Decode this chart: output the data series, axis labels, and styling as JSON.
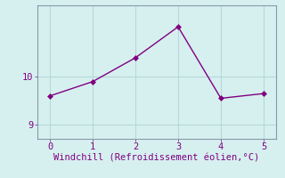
{
  "x": [
    0,
    1,
    2,
    3,
    4,
    5
  ],
  "y": [
    9.6,
    9.9,
    10.4,
    11.05,
    9.55,
    9.65
  ],
  "line_color": "#800080",
  "marker": "D",
  "marker_size": 3,
  "bg_color": "#d6f0f0",
  "grid_color": "#b8d8d8",
  "spine_color": "#8899aa",
  "xlabel": "Windchill (Refroidissement éolien,°C)",
  "xlabel_color": "#800080",
  "xlabel_fontsize": 7.5,
  "ytick_labels": [
    "9",
    "10"
  ],
  "yticks": [
    9,
    10
  ],
  "xticks": [
    0,
    1,
    2,
    3,
    4,
    5
  ],
  "ylim": [
    8.7,
    11.5
  ],
  "xlim": [
    -0.3,
    5.3
  ],
  "tick_color": "#800080",
  "tick_fontsize": 7.5,
  "linewidth": 1.0
}
